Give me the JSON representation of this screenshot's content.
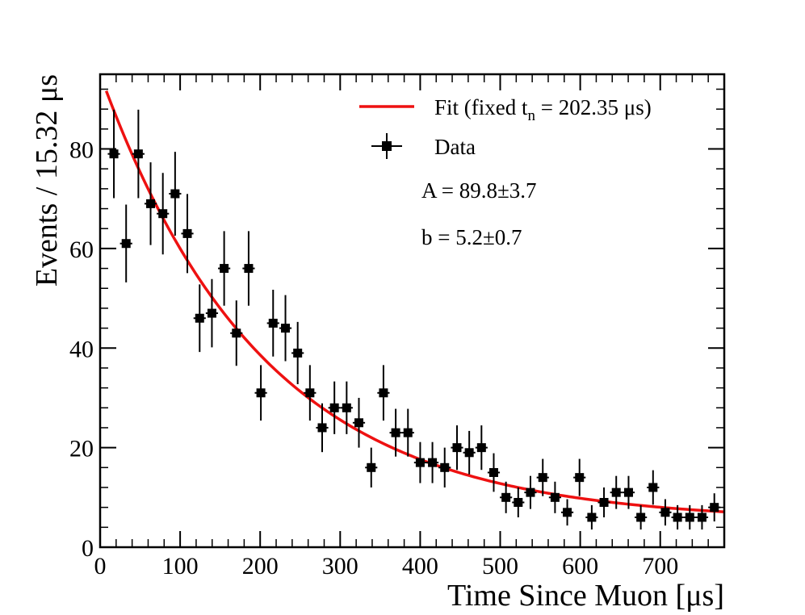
{
  "chart_data": {
    "type": "scatter",
    "title": "",
    "xlabel": "Time Since Muon [μs]",
    "ylabel": "Events / 15.32 μs",
    "xlim": [
      0,
      780
    ],
    "ylim": [
      0,
      95
    ],
    "bin_width": 15.32,
    "x_ticks": [
      0,
      100,
      200,
      300,
      400,
      500,
      600,
      700
    ],
    "y_ticks": [
      0,
      20,
      40,
      60,
      80
    ],
    "legend": {
      "position": "top-right",
      "fit_label_prefix": "Fit (fixed t",
      "fit_label_sub": "n",
      "fit_label_suffix": " = 202.35 μs)",
      "data_label": "Data"
    },
    "annotations": [
      "A = 89.8±3.7",
      "b = 5.2±0.7"
    ],
    "fit": {
      "name": "Fit",
      "color": "#ee1111",
      "model": "A*exp(-t/tn)+b",
      "A": 89.8,
      "tn": 202.35,
      "b": 5.2,
      "t_start": 7.66,
      "t_end": 780
    },
    "series": [
      {
        "name": "Data",
        "color": "#000000",
        "x": [
          17.2,
          32.5,
          47.8,
          63.1,
          78.4,
          93.7,
          109.0,
          124.4,
          139.7,
          155.0,
          170.3,
          185.6,
          200.9,
          216.2,
          231.6,
          246.9,
          262.2,
          277.5,
          292.8,
          308.1,
          323.4,
          338.8,
          354.1,
          369.4,
          384.7,
          400.0,
          415.3,
          430.6,
          446.0,
          461.3,
          476.6,
          491.9,
          507.2,
          522.5,
          537.8,
          553.2,
          568.5,
          583.8,
          599.1,
          614.4,
          629.7,
          645.0,
          660.4,
          675.7,
          691.0,
          706.3,
          721.6,
          736.9,
          752.2,
          767.6
        ],
        "y": [
          79,
          61,
          79,
          69,
          67,
          71,
          63,
          46,
          47,
          56,
          43,
          56,
          31,
          45,
          44,
          39,
          31,
          24,
          28,
          28,
          25,
          16,
          31,
          23,
          23,
          17,
          17,
          16,
          20,
          19,
          20,
          15,
          10,
          9,
          11,
          14,
          10,
          7,
          14,
          6,
          9,
          11,
          11,
          6,
          12,
          7,
          6,
          6,
          6,
          8
        ]
      }
    ]
  }
}
